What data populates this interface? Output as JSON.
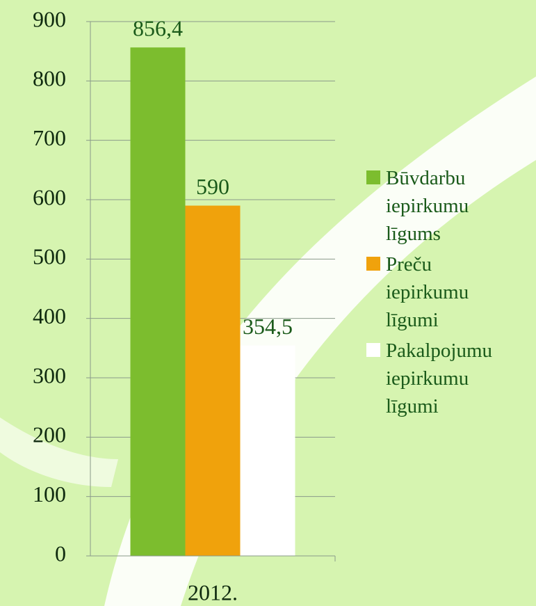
{
  "chart_data": {
    "type": "bar",
    "categories": [
      "2012."
    ],
    "series": [
      {
        "name": "Būvdarbu iepirkumu līgums",
        "color": "#7cbd2e",
        "values": [
          856.4
        ],
        "value_labels": [
          "856,4"
        ]
      },
      {
        "name": "Preču iepirkumu līgumi",
        "color": "#f0a20c",
        "values": [
          590
        ],
        "value_labels": [
          "590"
        ]
      },
      {
        "name": "Pakalpojumu iepirkumu līgumi",
        "color": "#ffffff",
        "values": [
          354.5
        ],
        "value_labels": [
          "354,5"
        ]
      }
    ],
    "ylim": [
      0,
      900
    ],
    "yticks": [
      0,
      100,
      200,
      300,
      400,
      500,
      600,
      700,
      800,
      900
    ],
    "grid": true,
    "legend": "right"
  }
}
